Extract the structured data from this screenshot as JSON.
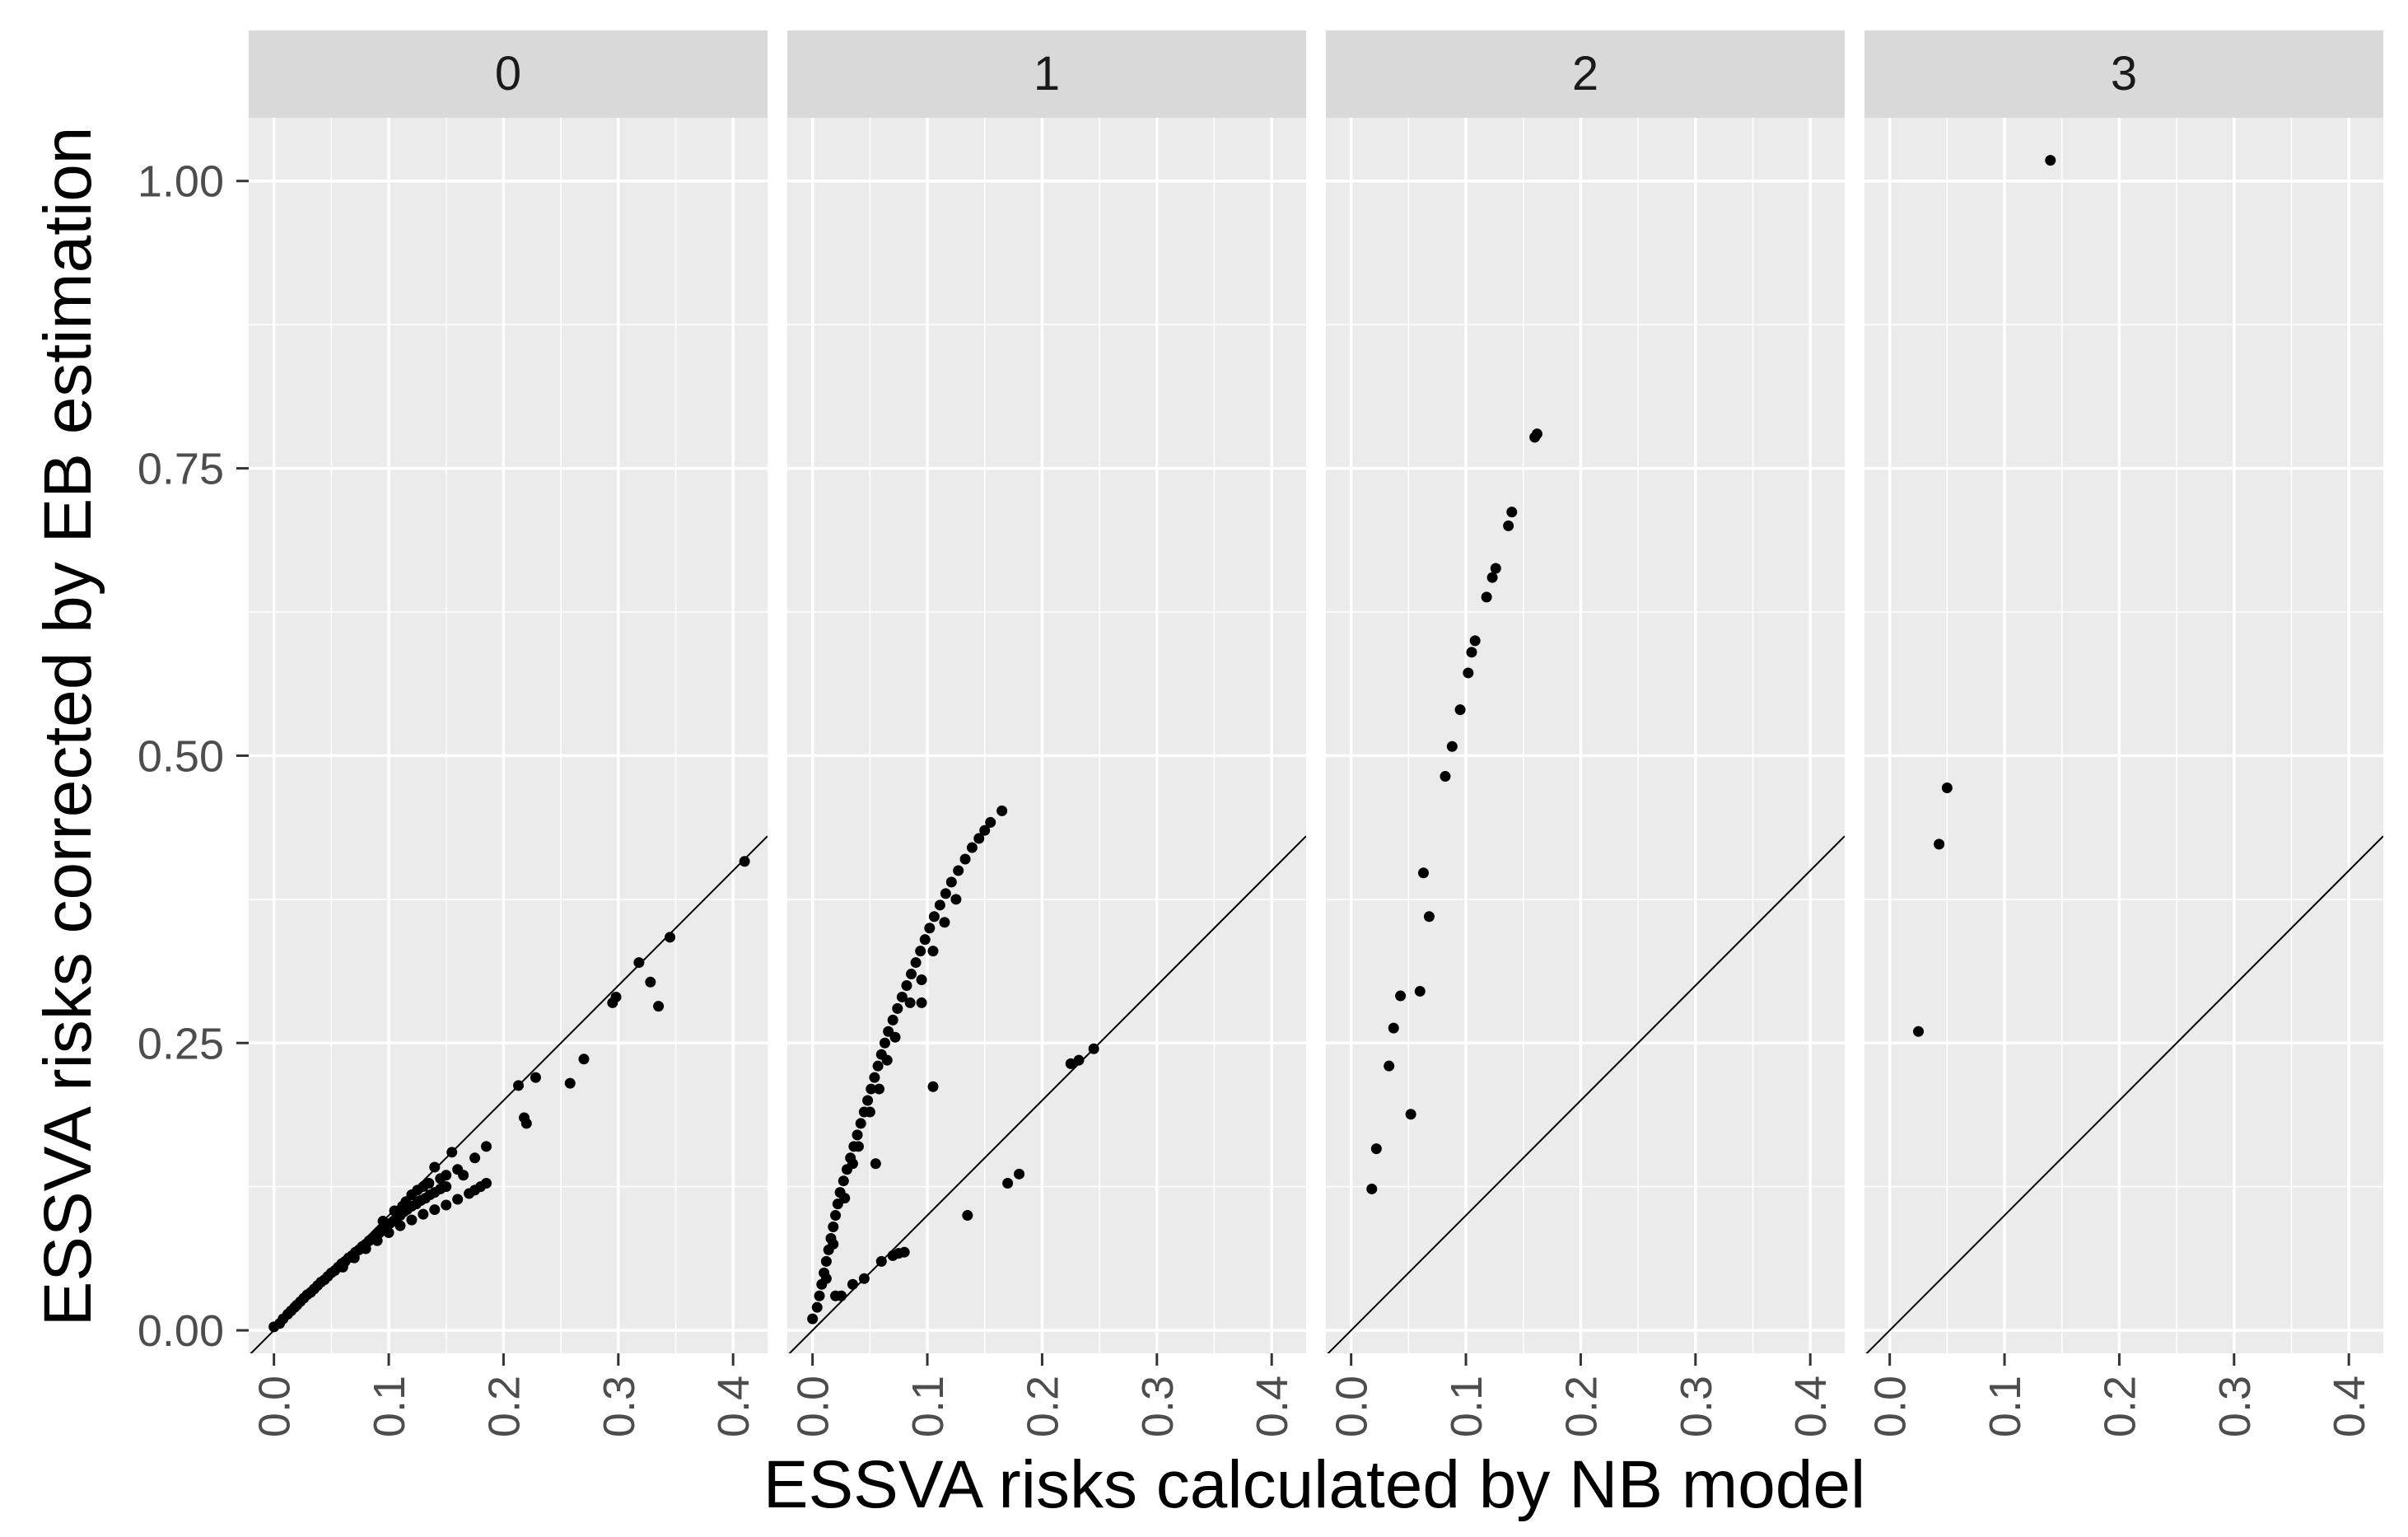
{
  "chart_data": {
    "type": "scatter",
    "facet_variable": "group",
    "facets": [
      {
        "label": "0",
        "points": [
          [
            0.0,
            0.003
          ],
          [
            0.005,
            0.006
          ],
          [
            0.008,
            0.01
          ],
          [
            0.012,
            0.014
          ],
          [
            0.015,
            0.017
          ],
          [
            0.018,
            0.02
          ],
          [
            0.02,
            0.022
          ],
          [
            0.023,
            0.025
          ],
          [
            0.026,
            0.028
          ],
          [
            0.029,
            0.031
          ],
          [
            0.032,
            0.033
          ],
          [
            0.035,
            0.036
          ],
          [
            0.038,
            0.039
          ],
          [
            0.041,
            0.042
          ],
          [
            0.044,
            0.044
          ],
          [
            0.047,
            0.047
          ],
          [
            0.05,
            0.05
          ],
          [
            0.053,
            0.052
          ],
          [
            0.056,
            0.055
          ],
          [
            0.059,
            0.058
          ],
          [
            0.062,
            0.06
          ],
          [
            0.065,
            0.063
          ],
          [
            0.068,
            0.065
          ],
          [
            0.071,
            0.068
          ],
          [
            0.074,
            0.07
          ],
          [
            0.077,
            0.073
          ],
          [
            0.08,
            0.075
          ],
          [
            0.083,
            0.078
          ],
          [
            0.086,
            0.08
          ],
          [
            0.089,
            0.083
          ],
          [
            0.092,
            0.085
          ],
          [
            0.095,
            0.088
          ],
          [
            0.098,
            0.09
          ],
          [
            0.101,
            0.093
          ],
          [
            0.104,
            0.095
          ],
          [
            0.107,
            0.098
          ],
          [
            0.11,
            0.1
          ],
          [
            0.113,
            0.103
          ],
          [
            0.116,
            0.105
          ],
          [
            0.12,
            0.108
          ],
          [
            0.124,
            0.11
          ],
          [
            0.128,
            0.113
          ],
          [
            0.132,
            0.115
          ],
          [
            0.136,
            0.118
          ],
          [
            0.14,
            0.12
          ],
          [
            0.145,
            0.123
          ],
          [
            0.15,
            0.125
          ],
          [
            0.06,
            0.055
          ],
          [
            0.07,
            0.063
          ],
          [
            0.08,
            0.071
          ],
          [
            0.09,
            0.078
          ],
          [
            0.1,
            0.085
          ],
          [
            0.11,
            0.091
          ],
          [
            0.12,
            0.096
          ],
          [
            0.13,
            0.101
          ],
          [
            0.14,
            0.105
          ],
          [
            0.15,
            0.109
          ],
          [
            0.16,
            0.114
          ],
          [
            0.17,
            0.119
          ],
          [
            0.175,
            0.122
          ],
          [
            0.18,
            0.125
          ],
          [
            0.185,
            0.128
          ],
          [
            0.095,
            0.095
          ],
          [
            0.105,
            0.104
          ],
          [
            0.115,
            0.112
          ],
          [
            0.125,
            0.122
          ],
          [
            0.135,
            0.128
          ],
          [
            0.145,
            0.132
          ],
          [
            0.155,
            0.155
          ],
          [
            0.14,
            0.142
          ],
          [
            0.125,
            0.112
          ],
          [
            0.13,
            0.125
          ],
          [
            0.16,
            0.14
          ],
          [
            0.165,
            0.135
          ],
          [
            0.175,
            0.15
          ],
          [
            0.185,
            0.16
          ],
          [
            0.15,
            0.135
          ],
          [
            0.12,
            0.118
          ],
          [
            0.112,
            0.108
          ],
          [
            0.213,
            0.213
          ],
          [
            0.218,
            0.185
          ],
          [
            0.22,
            0.18
          ],
          [
            0.228,
            0.22
          ],
          [
            0.258,
            0.215
          ],
          [
            0.27,
            0.236
          ],
          [
            0.295,
            0.285
          ],
          [
            0.298,
            0.29
          ],
          [
            0.318,
            0.32
          ],
          [
            0.328,
            0.303
          ],
          [
            0.335,
            0.282
          ],
          [
            0.345,
            0.342
          ],
          [
            0.41,
            0.408
          ]
        ]
      },
      {
        "label": "1",
        "points": [
          [
            0.0,
            0.01
          ],
          [
            0.004,
            0.02
          ],
          [
            0.006,
            0.03
          ],
          [
            0.008,
            0.04
          ],
          [
            0.01,
            0.05
          ],
          [
            0.012,
            0.06
          ],
          [
            0.014,
            0.07
          ],
          [
            0.016,
            0.08
          ],
          [
            0.018,
            0.09
          ],
          [
            0.02,
            0.1
          ],
          [
            0.022,
            0.11
          ],
          [
            0.024,
            0.12
          ],
          [
            0.027,
            0.13
          ],
          [
            0.03,
            0.14
          ],
          [
            0.033,
            0.15
          ],
          [
            0.036,
            0.16
          ],
          [
            0.039,
            0.17
          ],
          [
            0.042,
            0.18
          ],
          [
            0.045,
            0.19
          ],
          [
            0.048,
            0.2
          ],
          [
            0.051,
            0.21
          ],
          [
            0.054,
            0.22
          ],
          [
            0.057,
            0.23
          ],
          [
            0.06,
            0.24
          ],
          [
            0.063,
            0.25
          ],
          [
            0.066,
            0.26
          ],
          [
            0.07,
            0.27
          ],
          [
            0.074,
            0.28
          ],
          [
            0.078,
            0.29
          ],
          [
            0.082,
            0.3
          ],
          [
            0.086,
            0.31
          ],
          [
            0.09,
            0.32
          ],
          [
            0.094,
            0.33
          ],
          [
            0.098,
            0.34
          ],
          [
            0.102,
            0.35
          ],
          [
            0.106,
            0.36
          ],
          [
            0.111,
            0.37
          ],
          [
            0.116,
            0.38
          ],
          [
            0.121,
            0.39
          ],
          [
            0.127,
            0.4
          ],
          [
            0.133,
            0.41
          ],
          [
            0.139,
            0.42
          ],
          [
            0.145,
            0.428
          ],
          [
            0.15,
            0.435
          ],
          [
            0.155,
            0.442
          ],
          [
            0.165,
            0.452
          ],
          [
            0.012,
            0.045
          ],
          [
            0.018,
            0.075
          ],
          [
            0.028,
            0.115
          ],
          [
            0.035,
            0.145
          ],
          [
            0.04,
            0.16
          ],
          [
            0.05,
            0.19
          ],
          [
            0.058,
            0.21
          ],
          [
            0.065,
            0.235
          ],
          [
            0.072,
            0.255
          ],
          [
            0.085,
            0.285
          ],
          [
            0.095,
            0.305
          ],
          [
            0.105,
            0.33
          ],
          [
            0.115,
            0.355
          ],
          [
            0.125,
            0.375
          ],
          [
            0.02,
            0.03
          ],
          [
            0.025,
            0.03
          ],
          [
            0.035,
            0.04
          ],
          [
            0.045,
            0.045
          ],
          [
            0.055,
            0.145
          ],
          [
            0.06,
            0.06
          ],
          [
            0.07,
            0.065
          ],
          [
            0.075,
            0.067
          ],
          [
            0.08,
            0.068
          ],
          [
            0.095,
            0.285
          ],
          [
            0.105,
            0.212
          ],
          [
            0.135,
            0.1
          ],
          [
            0.17,
            0.128
          ],
          [
            0.18,
            0.136
          ],
          [
            0.225,
            0.232
          ],
          [
            0.232,
            0.235
          ],
          [
            0.245,
            0.245
          ]
        ]
      },
      {
        "label": "2",
        "points": [
          [
            0.018,
            0.123
          ],
          [
            0.022,
            0.158
          ],
          [
            0.033,
            0.23
          ],
          [
            0.037,
            0.263
          ],
          [
            0.043,
            0.291
          ],
          [
            0.052,
            0.188
          ],
          [
            0.06,
            0.295
          ],
          [
            0.063,
            0.398
          ],
          [
            0.068,
            0.36
          ],
          [
            0.082,
            0.482
          ],
          [
            0.088,
            0.508
          ],
          [
            0.095,
            0.54
          ],
          [
            0.102,
            0.572
          ],
          [
            0.105,
            0.59
          ],
          [
            0.108,
            0.6
          ],
          [
            0.118,
            0.638
          ],
          [
            0.123,
            0.655
          ],
          [
            0.126,
            0.663
          ],
          [
            0.137,
            0.7
          ],
          [
            0.14,
            0.712
          ],
          [
            0.16,
            0.777
          ],
          [
            0.162,
            0.78
          ]
        ]
      },
      {
        "label": "3",
        "points": [
          [
            0.025,
            0.26
          ],
          [
            0.043,
            0.423
          ],
          [
            0.05,
            0.472
          ],
          [
            0.14,
            1.018
          ]
        ]
      }
    ],
    "reference_line": "y = x",
    "x_axis": {
      "label": "ESSVA risks calculated by NB model",
      "range": [
        -0.022,
        0.43
      ],
      "ticks": [
        0.0,
        0.1,
        0.2,
        0.3,
        0.4
      ],
      "tick_labels": [
        "0.0",
        "0.1",
        "0.2",
        "0.3",
        "0.4"
      ]
    },
    "y_axis": {
      "label": "ESSVA risks corrected by EB estimation",
      "range": [
        -0.02,
        1.055
      ],
      "ticks": [
        0.0,
        0.25,
        0.5,
        0.75,
        1.0
      ],
      "tick_labels": [
        "0.00",
        "0.25",
        "0.50",
        "0.75",
        "1.00"
      ]
    },
    "grid": true,
    "legend": "none"
  },
  "colors": {
    "panel_bg": "#EBEBEB",
    "strip_bg": "#D9D9D9",
    "grid_major": "#FFFFFF",
    "point": "#000000",
    "axis_text": "#4D4D4D",
    "title_text": "#000000"
  }
}
